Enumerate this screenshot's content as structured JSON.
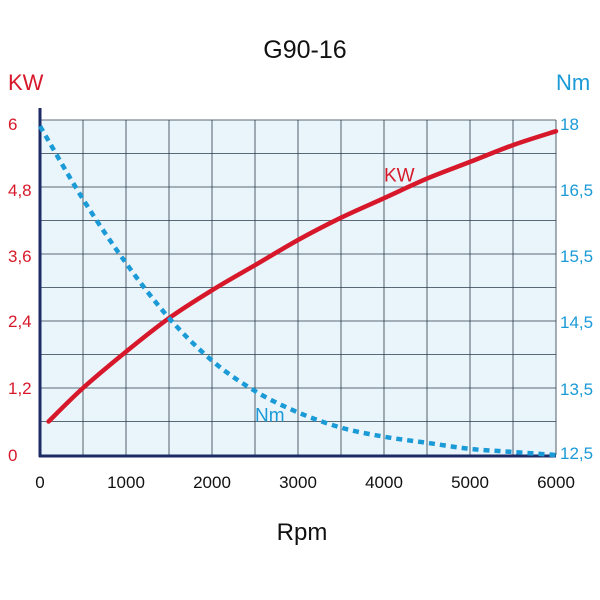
{
  "chart_data": {
    "type": "line",
    "title": "G90-16",
    "xlabel": "Rpm",
    "ylabel_left": "KW",
    "ylabel_right": "Nm",
    "xlim": [
      0,
      6000
    ],
    "ylim_left": [
      0,
      6
    ],
    "ylim_right": [
      12.5,
      18
    ],
    "x_ticks": [
      "0",
      "1000",
      "2000",
      "3000",
      "4000",
      "5000",
      "6000"
    ],
    "y_ticks_left": [
      "0",
      "1,2",
      "2,4",
      "3,6",
      "4,8",
      "6"
    ],
    "y_ticks_right": [
      "12,5",
      "13,5",
      "14,5",
      "15,5",
      "16,5",
      "18"
    ],
    "grid": true,
    "series": [
      {
        "name": "KW",
        "axis": "left",
        "color": "#d7182a",
        "style": "solid",
        "x": [
          100,
          500,
          1000,
          1500,
          2000,
          2500,
          3000,
          3500,
          4000,
          4500,
          5000,
          5500,
          6000
        ],
        "values": [
          0.6,
          1.2,
          1.85,
          2.45,
          2.95,
          3.4,
          3.85,
          4.25,
          4.6,
          4.95,
          5.25,
          5.55,
          5.8
        ]
      },
      {
        "name": "Nm",
        "axis": "right",
        "color": "#1a9ad6",
        "style": "dotted",
        "x": [
          0,
          500,
          1000,
          1500,
          2000,
          2500,
          3000,
          3500,
          4000,
          4500,
          5000,
          5500,
          6000
        ],
        "values": [
          17.9,
          16.7,
          15.65,
          14.75,
          14.05,
          13.55,
          13.2,
          12.95,
          12.8,
          12.7,
          12.6,
          12.55,
          12.5
        ]
      }
    ],
    "annotations": [
      {
        "text": "KW",
        "color": "#d7182a",
        "x": 4000,
        "y": 4.9,
        "axis": "left"
      },
      {
        "text": "Nm",
        "color": "#1a9ad6",
        "x": 2500,
        "y": 13.05,
        "axis": "right"
      }
    ]
  },
  "colors": {
    "plot_background": "#eaf5fb",
    "grid": "#2a3a4a",
    "axis": "#1c2a66",
    "left_axis_text": "#d7182a",
    "right_axis_text": "#1a9ad6",
    "text": "#111111"
  }
}
